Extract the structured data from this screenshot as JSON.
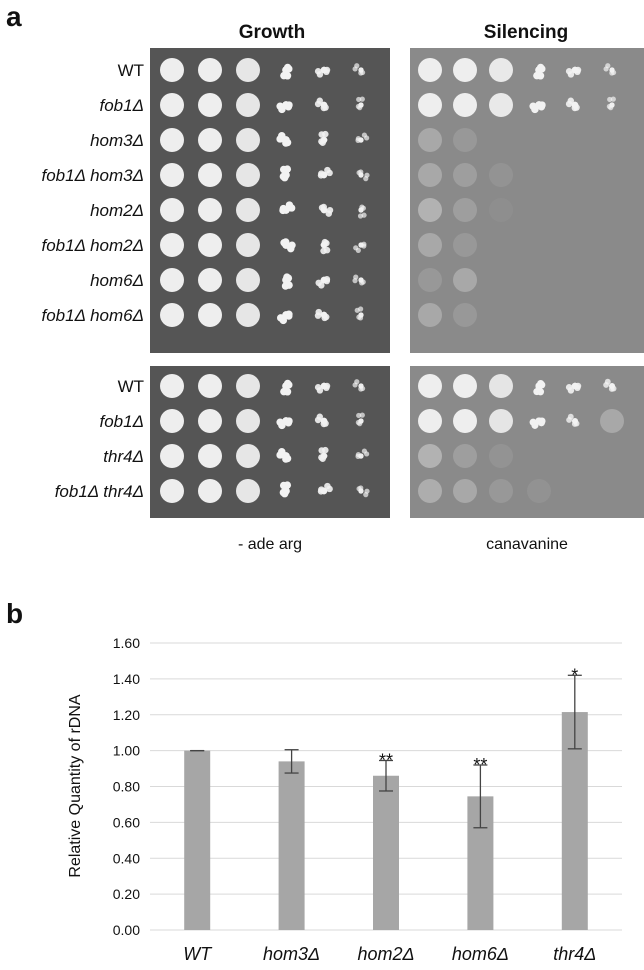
{
  "panel_a": {
    "label": "a",
    "columns": [
      "Growth",
      "Silencing"
    ],
    "groups": [
      {
        "strains": [
          "WT",
          "fob1Δ",
          "hom3Δ",
          "fob1Δ hom3Δ",
          "hom2Δ",
          "fob1Δ hom2Δ",
          "hom6Δ",
          "fob1Δ hom6Δ"
        ]
      },
      {
        "strains": [
          "WT",
          "fob1Δ",
          "thr4Δ",
          "fob1Δ thr4Δ"
        ]
      }
    ],
    "media": [
      "- ade arg",
      "canavanine"
    ]
  },
  "chart_data": {
    "type": "bar",
    "panel_label": "b",
    "y_label": "Relative Quantity of rDNA",
    "categories": [
      "WT",
      "hom3Δ",
      "hom2Δ",
      "hom6Δ",
      "thr4Δ"
    ],
    "values": [
      1.0,
      0.94,
      0.86,
      0.745,
      1.215
    ],
    "errors": [
      0,
      0.065,
      0.085,
      0.175,
      0.205
    ],
    "annotations": [
      null,
      null,
      "**",
      "**",
      "*"
    ],
    "color": "#a6a6a6",
    "ylim": [
      0,
      1.6
    ],
    "yticks": [
      {
        "value": 0,
        "label": "0.00"
      },
      {
        "value": 0.2,
        "label": "0.20"
      },
      {
        "value": 0.4,
        "label": "0.40"
      },
      {
        "value": 0.6,
        "label": "0.60"
      },
      {
        "value": 0.8,
        "label": "0.80"
      },
      {
        "value": 1.0,
        "label": "1.00"
      },
      {
        "value": 1.2,
        "label": "1.20"
      },
      {
        "value": 1.4,
        "label": "1.40"
      },
      {
        "value": 1.6,
        "label": "1.60"
      }
    ],
    "grid": true
  }
}
